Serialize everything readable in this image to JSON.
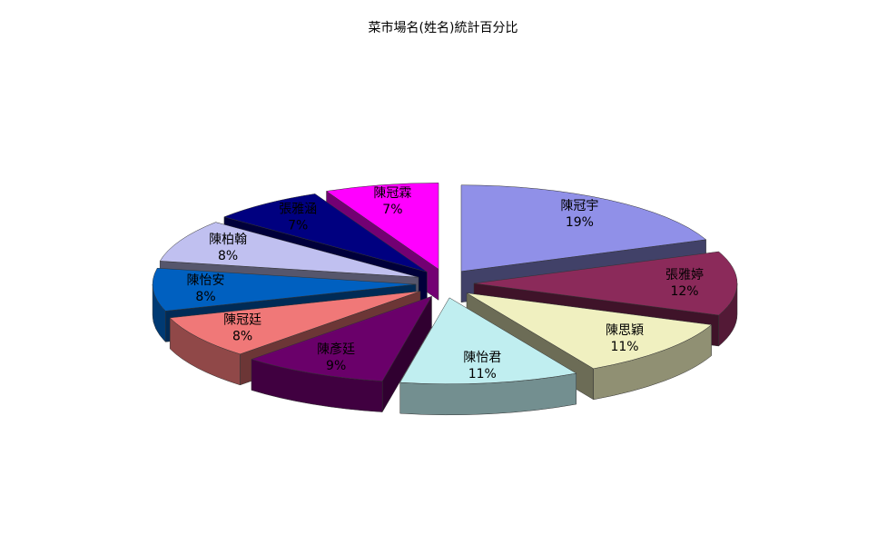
{
  "chart_data": {
    "type": "pie",
    "title": "菜市場名(姓名)統計百分比",
    "categories": [
      "陳冠宇",
      "張雅婷",
      "陳思穎",
      "陳怡君",
      "陳彥廷",
      "陳冠廷",
      "陳怡安",
      "陳柏翰",
      "張雅涵",
      "陳冠霖"
    ],
    "values": [
      19,
      12,
      11,
      11,
      9,
      8,
      8,
      8,
      7,
      7
    ],
    "value_labels": [
      "19%",
      "12%",
      "11%",
      "11%",
      "9%",
      "8%",
      "8%",
      "8%",
      "7%",
      "7%"
    ],
    "colors": [
      "#9090e8",
      "#8b2a5a",
      "#f0f0c0",
      "#c0eef0",
      "#6a006a",
      "#f07878",
      "#0060c0",
      "#c0c0f0",
      "#000080",
      "#ff00ff"
    ]
  }
}
